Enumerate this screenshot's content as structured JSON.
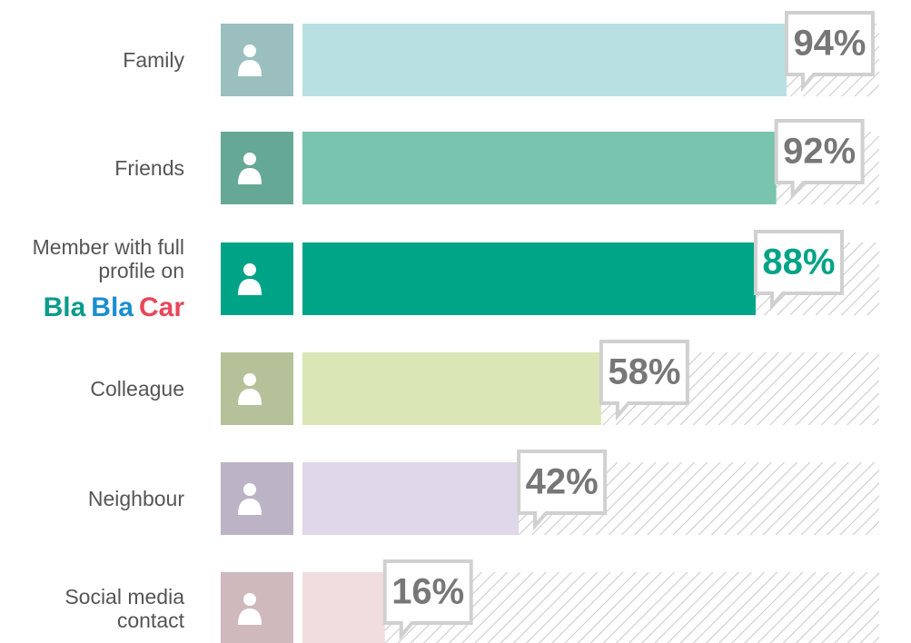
{
  "chart_data": {
    "type": "bar",
    "categories": [
      "Family",
      "Friends",
      "Member with full profile on",
      "Colleague",
      "Neighbour",
      "Social media contact"
    ],
    "brand": [
      "Bla",
      "Bla",
      "Car"
    ],
    "brand_colors": [
      "#0a9b8a",
      "#1a8fd0",
      "#e8475a"
    ],
    "values": [
      94,
      92,
      88,
      58,
      42,
      16
    ],
    "value_labels": [
      "94%",
      "92%",
      "88%",
      "58%",
      "42%",
      "16%"
    ],
    "colors": [
      "#b8e0e2",
      "#78c4ae",
      "#00a587",
      "#dae6b5",
      "#e0d8e8",
      "#f1dde0"
    ],
    "icon_colors": [
      "#9bbfbf",
      "#66a896",
      "#00a386",
      "#b5c199",
      "#bcb3c5",
      "#cfb9bd"
    ],
    "label_colors": [
      "#777777",
      "#777777",
      "#00a386",
      "#777777",
      "#777777",
      "#777777"
    ],
    "xlim": [
      0,
      100
    ]
  }
}
